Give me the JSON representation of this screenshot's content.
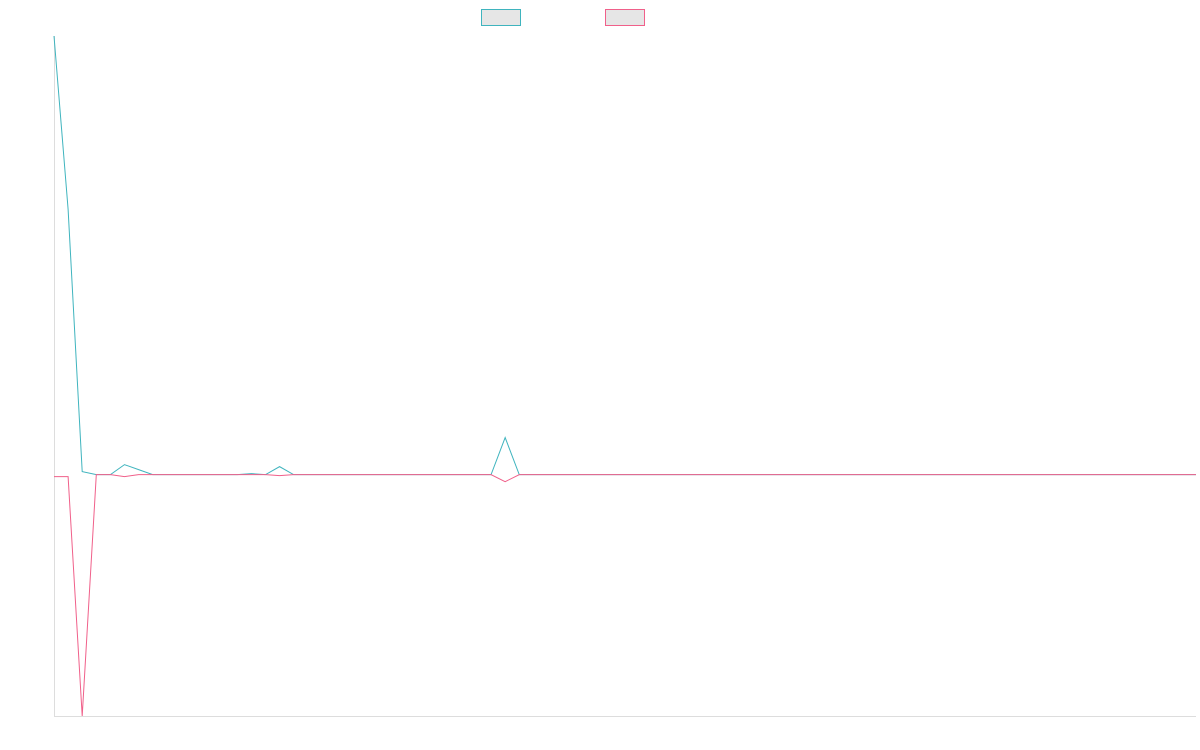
{
  "chart_data": {
    "type": "line",
    "title": "",
    "xlabel": "",
    "ylabel": "",
    "grid": false,
    "legend_position": "top-center",
    "x": [
      0,
      1,
      2,
      3,
      4,
      5,
      6,
      7,
      8,
      9,
      10,
      11,
      12,
      13,
      14,
      15,
      16,
      17,
      18,
      19,
      20,
      21,
      22,
      23,
      24,
      25,
      26,
      27,
      28,
      29,
      30,
      31,
      32,
      33,
      34,
      35,
      36,
      37,
      38,
      39,
      40,
      41,
      42,
      43,
      44,
      45,
      46,
      47,
      48,
      49,
      50,
      51,
      52,
      53,
      54,
      55,
      56,
      57,
      58,
      59,
      60,
      61,
      62,
      63,
      64,
      65,
      66,
      67,
      68,
      69,
      70,
      71,
      72,
      73,
      74,
      75,
      76,
      77,
      78,
      79,
      80,
      81
    ],
    "xlim": [
      0,
      81
    ],
    "ylim": [
      -24.1,
      43.8
    ],
    "series": [
      {
        "color": "#3fb4be",
        "values": [
          43.8,
          26.5,
          0.3,
          0,
          0,
          1,
          0.5,
          0,
          0,
          0,
          0,
          0,
          0,
          0,
          0.1,
          0,
          0.8,
          0,
          0,
          0,
          0,
          0,
          0,
          0,
          0,
          0,
          0,
          0,
          0,
          0,
          0,
          0,
          3.7,
          0,
          0,
          0,
          0,
          0,
          0,
          0,
          0,
          0,
          0,
          0,
          0,
          0,
          0,
          0,
          0,
          0,
          0,
          0,
          0,
          0,
          0,
          0,
          0,
          0,
          0,
          0,
          0,
          0,
          0,
          0,
          0,
          0,
          0,
          0,
          0,
          0,
          0,
          0,
          0,
          0,
          0,
          0,
          0,
          0,
          0,
          0,
          0,
          0
        ]
      },
      {
        "color": "#f0608a",
        "values": [
          -0.2,
          -0.2,
          -24.1,
          0,
          0,
          -0.2,
          0,
          0,
          0,
          0,
          0,
          0,
          0,
          0,
          0,
          0,
          -0.1,
          0,
          0,
          0,
          0,
          0,
          0,
          0,
          0,
          0,
          0,
          0,
          0,
          0,
          0,
          0,
          -0.7,
          0,
          0,
          0,
          0,
          0,
          0,
          0,
          0,
          0,
          0,
          0,
          0,
          0,
          0,
          0,
          0,
          0,
          0,
          0,
          0,
          0,
          0,
          0,
          0,
          0,
          0,
          0,
          0,
          0,
          0,
          0,
          0,
          0,
          0,
          0,
          0,
          0,
          0,
          0,
          0,
          0,
          0,
          0,
          0,
          0,
          0,
          0,
          0,
          0
        ]
      }
    ]
  }
}
